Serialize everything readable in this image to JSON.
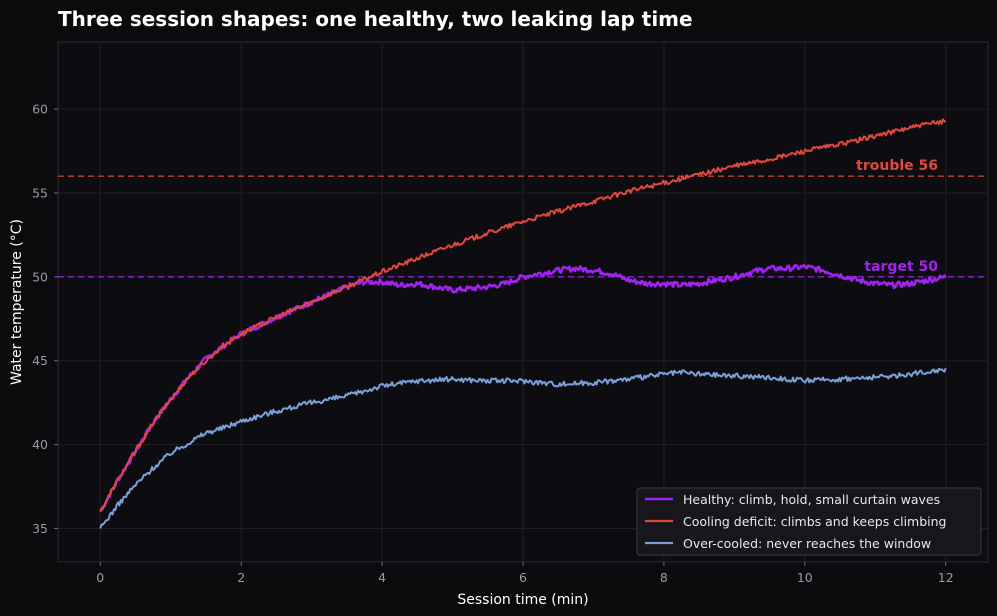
{
  "chart_data": {
    "type": "line",
    "title": "Three session shapes: one healthy, two leaking lap time",
    "xlabel": "Session time (min)",
    "ylabel": "Water temperature (°C)",
    "xlim": [
      -0.6,
      12.6
    ],
    "ylim": [
      33,
      64
    ],
    "xticks": [
      "0",
      "2",
      "4",
      "6",
      "8",
      "10",
      "12"
    ],
    "yticks": [
      "35",
      "40",
      "45",
      "50",
      "55",
      "60"
    ],
    "grid": true,
    "legend_position": "lower-right",
    "reference_lines": [
      {
        "label": "target 50",
        "y": 50,
        "color": "#a023f0"
      },
      {
        "label": "trouble 56",
        "y": 56,
        "color": "#e0483f"
      }
    ],
    "series": [
      {
        "name": "Healthy: climb, hold, small curtain waves",
        "color": "#a023f0",
        "x": [
          0,
          0.25,
          0.5,
          0.75,
          1,
          1.25,
          1.5,
          1.75,
          2,
          2.5,
          3,
          3.5,
          3.75,
          4,
          4.25,
          4.5,
          4.75,
          5,
          5.25,
          5.5,
          5.75,
          6,
          6.25,
          6.5,
          6.75,
          7,
          7.25,
          7.5,
          7.75,
          8,
          8.25,
          8.5,
          8.75,
          9,
          9.25,
          9.5,
          9.75,
          10,
          10.25,
          10.5,
          10.75,
          11,
          11.25,
          11.5,
          11.75,
          12
        ],
        "y": [
          36.0,
          37.9,
          39.6,
          41.3,
          42.7,
          44.0,
          45.1,
          45.9,
          46.6,
          47.6,
          48.5,
          49.4,
          49.7,
          49.7,
          49.5,
          49.6,
          49.4,
          49.2,
          49.3,
          49.4,
          49.6,
          50.0,
          50.2,
          50.4,
          50.5,
          50.4,
          50.2,
          49.8,
          49.6,
          49.6,
          49.5,
          49.6,
          49.8,
          50.0,
          50.3,
          50.5,
          50.5,
          50.6,
          50.4,
          50.1,
          49.8,
          49.6,
          49.5,
          49.6,
          49.8,
          50.0
        ]
      },
      {
        "name": "Cooling deficit: climbs and keeps climbing",
        "color": "#e0483f",
        "x": [
          0,
          0.25,
          0.5,
          0.75,
          1,
          1.25,
          1.5,
          1.75,
          2,
          2.5,
          3,
          3.5,
          4,
          4.5,
          5,
          5.5,
          6,
          6.5,
          7,
          7.5,
          8,
          8.5,
          9,
          9.5,
          10,
          10.5,
          11,
          11.5,
          12
        ],
        "y": [
          36.0,
          37.9,
          39.6,
          41.3,
          42.7,
          44.0,
          45.0,
          45.9,
          46.6,
          47.6,
          48.5,
          49.4,
          50.3,
          51.1,
          51.9,
          52.6,
          53.3,
          53.9,
          54.5,
          55.1,
          55.6,
          56.1,
          56.6,
          57.0,
          57.5,
          57.9,
          58.4,
          58.9,
          59.3
        ]
      },
      {
        "name": "Over-cooled: never reaches the window",
        "color": "#7d9fd8",
        "x": [
          0,
          0.25,
          0.5,
          0.75,
          1,
          1.25,
          1.5,
          1.75,
          2,
          2.5,
          3,
          3.5,
          4,
          4.5,
          5,
          5.5,
          6,
          6.5,
          7,
          7.5,
          8,
          8.25,
          8.5,
          9,
          9.5,
          10,
          10.5,
          11,
          11.5,
          12
        ],
        "y": [
          35.0,
          36.4,
          37.6,
          38.6,
          39.5,
          40.1,
          40.7,
          41.0,
          41.4,
          42.0,
          42.5,
          42.9,
          43.5,
          43.8,
          43.9,
          43.8,
          43.8,
          43.6,
          43.7,
          43.9,
          44.2,
          44.3,
          44.2,
          44.1,
          44.0,
          43.8,
          43.9,
          44.0,
          44.2,
          44.5
        ]
      }
    ]
  }
}
